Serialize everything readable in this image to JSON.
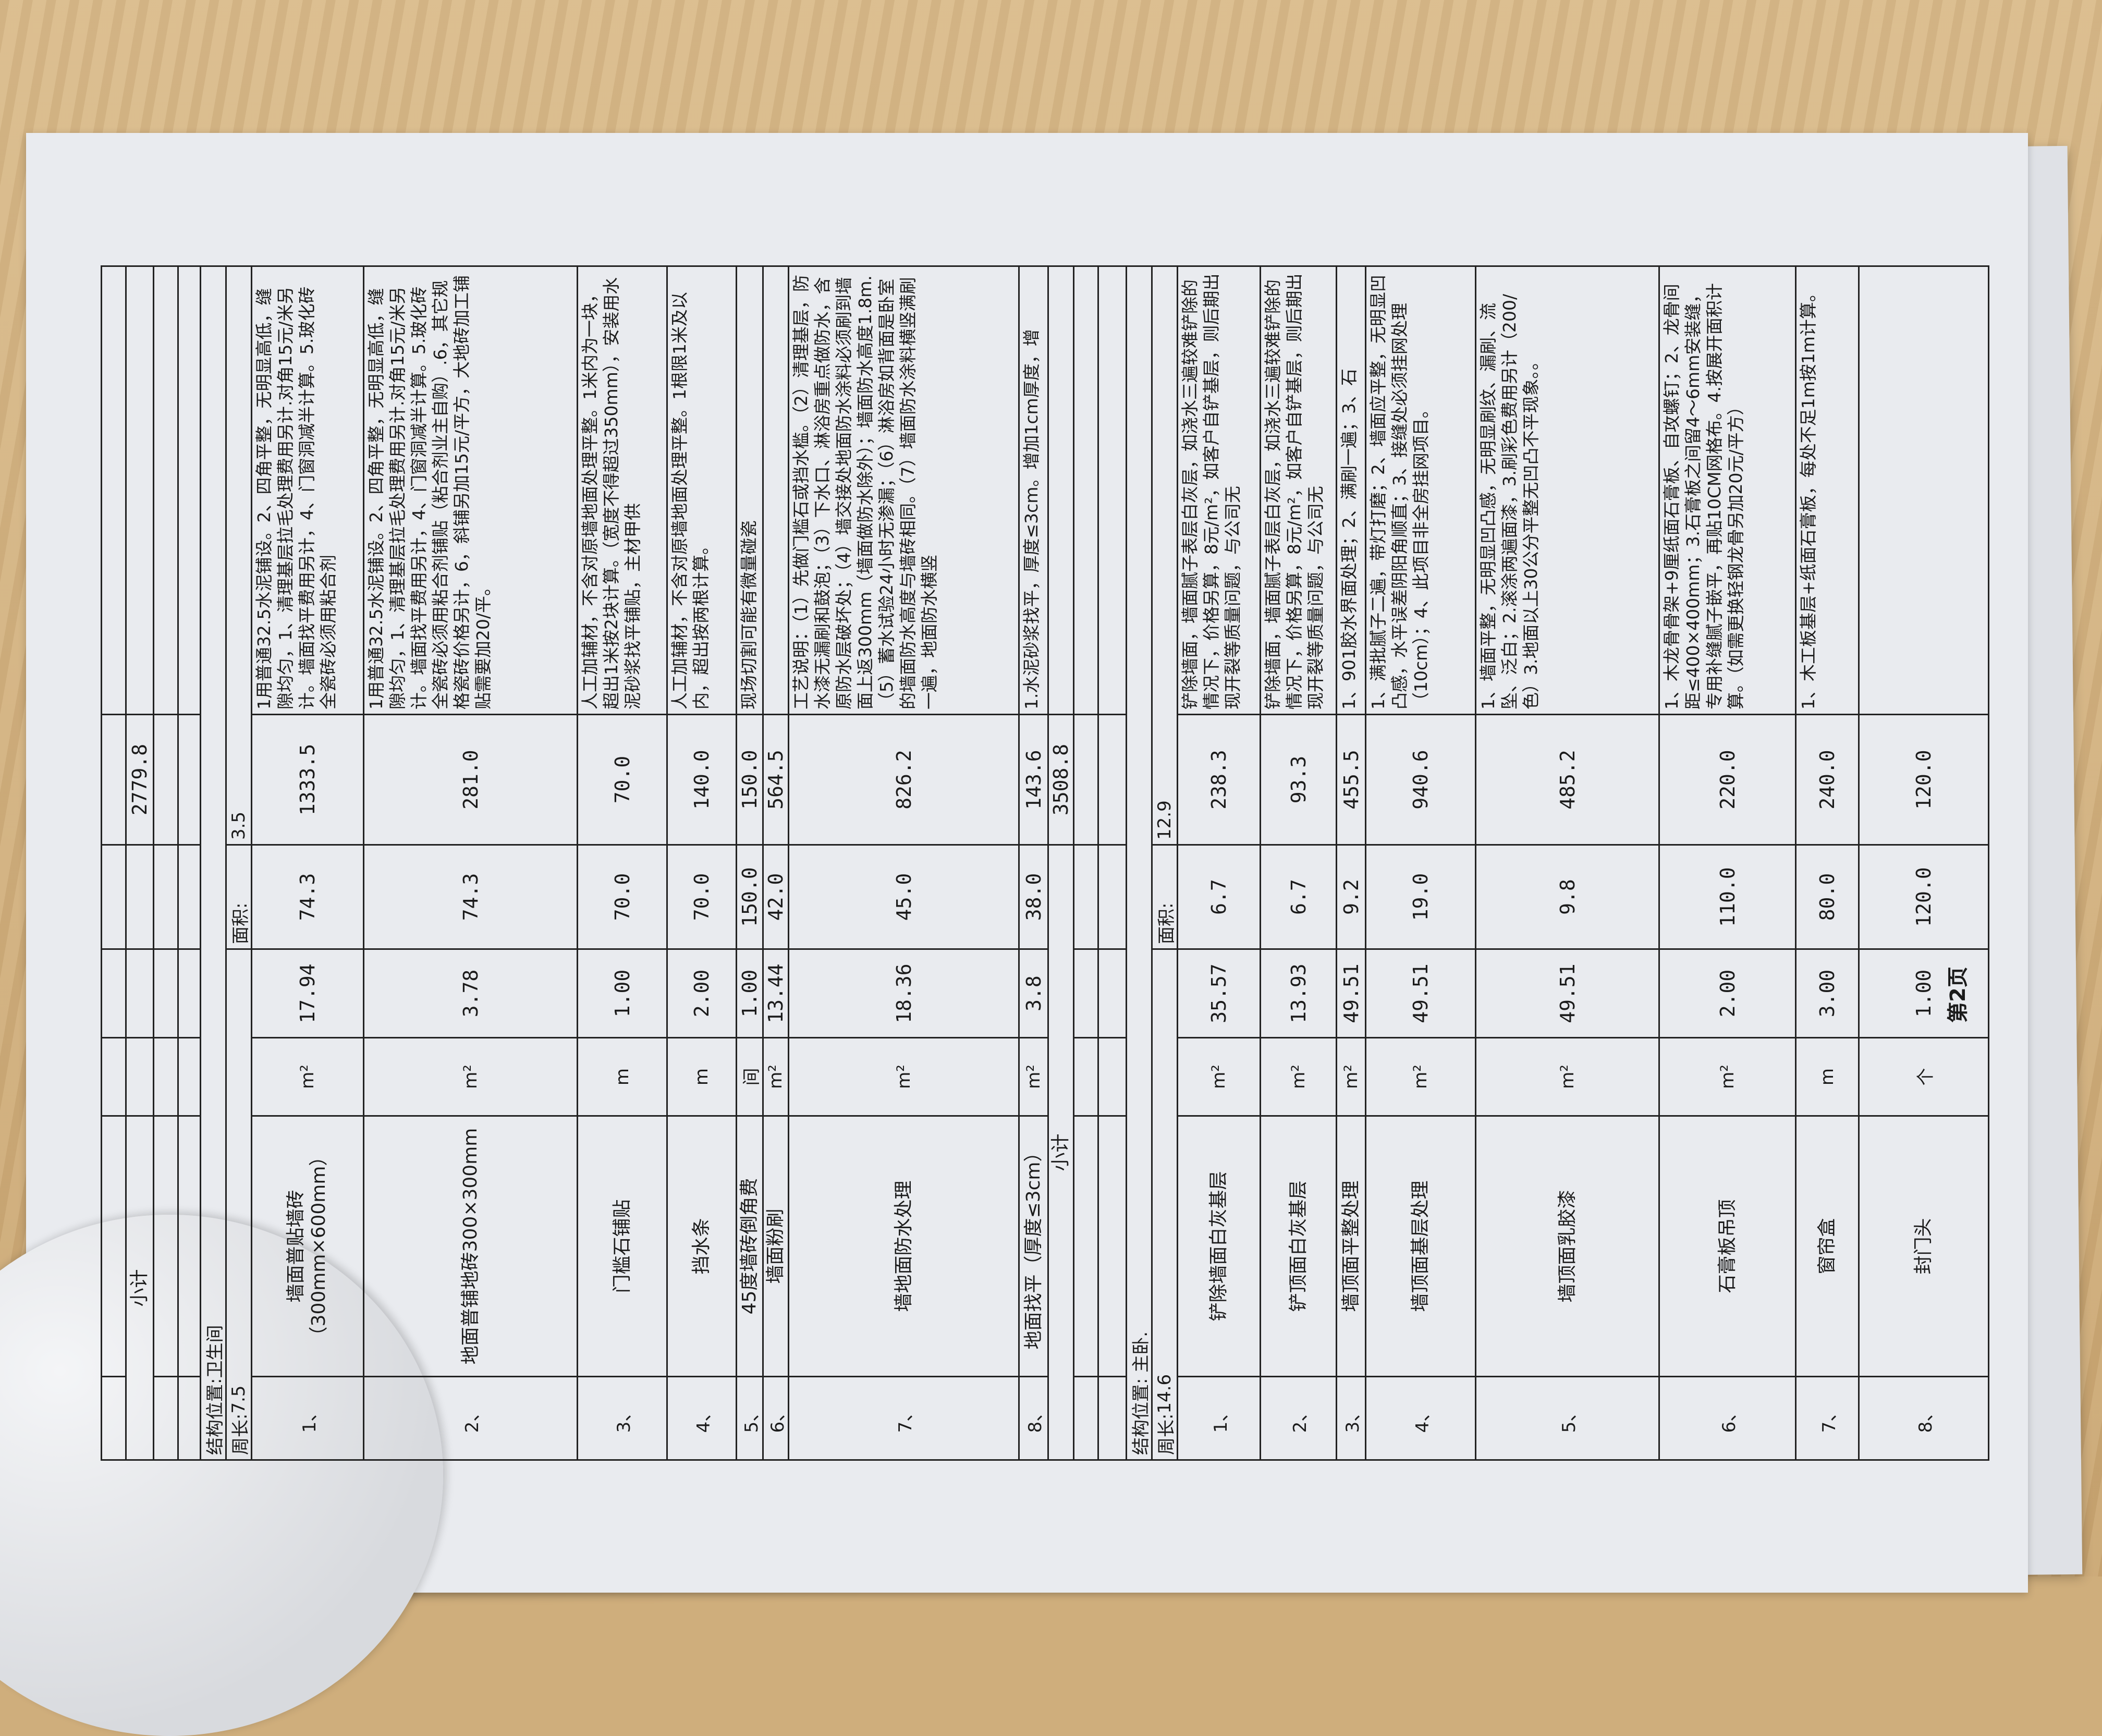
{
  "previous_subtotal": {
    "label": "小计",
    "total": "2779.8"
  },
  "sections": [
    {
      "location": "结构位置:卫生间",
      "perimeter_label": "周长:",
      "perimeter": "7.5",
      "area_label": "面积:",
      "area": "3.5",
      "rows": [
        {
          "no": "1、",
          "name": "墙面普贴墙砖（300mm×600mm）",
          "unit": "m²",
          "qty": "17.94",
          "price": "74.3",
          "total": "1333.5",
          "desc": "1用普通32.5水泥铺设。2、四角平整，无明显高低，缝隙均匀，1、清理基层拉毛处理费用另计.对角15元/米另计。墙面找平费用另计，4、门窗洞减半计算。5.玻化砖全瓷砖必须用粘合剂"
        },
        {
          "no": "2、",
          "name": "地面普铺地砖300×300mm",
          "unit": "m²",
          "qty": "3.78",
          "price": "74.3",
          "total": "281.0",
          "desc": "1用普通32.5水泥铺设。2、四角平整，无明显高低，缝隙均匀，1、清理基层拉毛处理费用另计.对角15元/米另计。墙面找平费用另计，4、门窗洞减半计算。5.玻化砖全瓷砖必须用粘合剂铺贴（粘合剂业主自购）.6，其它规格瓷砖价格另计，6，斜铺另加15元/平方，大地砖加工铺贴需要加20/平。"
        },
        {
          "no": "3、",
          "name": "门槛石铺贴",
          "unit": "m",
          "qty": "1.00",
          "price": "70.0",
          "total": "70.0",
          "desc": "人工加辅材，不含对原墙地面处理平整。1米内为一块，超出1米按2块计算。（宽度不得超过350mm），安装用水泥砂浆找平铺贴，主材甲供"
        },
        {
          "no": "4、",
          "name": "挡水条",
          "unit": "m",
          "qty": "2.00",
          "price": "70.0",
          "total": "140.0",
          "desc": "人工加辅材，不含对原墙地面处理平整。1根限1米及以内，超出按两根计算。"
        },
        {
          "no": "5、",
          "name": "45度墙砖倒角费",
          "unit": "间",
          "qty": "1.00",
          "price": "150.0",
          "total": "150.0",
          "desc": "现场切割可能有微量碰瓷"
        },
        {
          "no": "6、",
          "name": "墙面粉刷",
          "unit": "m²",
          "qty": "13.44",
          "price": "42.0",
          "total": "564.5",
          "desc": ""
        },
        {
          "no": "7、",
          "name": "墙地面防水处理",
          "unit": "m²",
          "qty": "18.36",
          "price": "45.0",
          "total": "826.2",
          "desc": "工艺说明：（1）先做门槛石或挡水槛。（2）清理基层，防水漆无漏刷和鼓泡；（3）下水口、淋浴房重点做防水，含原防水层破坏处；（4）墙交接处地面防水涂料必须刷到墙面上返300mm（墙面做防水除外）；墙面防水高度1.8m.（5）蓄水试验24小时无渗漏；（6）淋浴房如背面是卧室的墙面防水高度与墙砖相同。（7）墙面防水涂料横竖满刷一遍，地面防水横竖"
        },
        {
          "no": "8、",
          "name": "地面找平（厚度≤3cm）",
          "unit": "m²",
          "qty": "3.8",
          "price": "38.0",
          "total": "143.6",
          "desc": "1.水泥砂浆找平，厚度≤3cm。增加1cm厚度，增"
        }
      ],
      "subtotal": {
        "label": "小计",
        "total": "3508.8"
      }
    },
    {
      "location": "结构位置: 主卧.",
      "perimeter_label": "周长:",
      "perimeter": "14.6",
      "area_label": "面积:",
      "area": "12.9",
      "rows": [
        {
          "no": "1、",
          "name": "铲除墙面白灰基层",
          "unit": "m²",
          "qty": "35.57",
          "price": "6.7",
          "total": "238.3",
          "desc": "铲除墙面，墙面腻子表层白灰层，如浇水三遍较难铲除的情况下，价格另算，8元/m²，如客户自铲基层，则后期出现开裂等质量问题，与公司无"
        },
        {
          "no": "2、",
          "name": "铲顶面白灰基层",
          "unit": "m²",
          "qty": "13.93",
          "price": "6.7",
          "total": "93.3",
          "desc": "铲除墙面，墙面腻子表层白灰层，如浇水三遍较难铲除的情况下，价格另算，8元/m²，如客户自铲基层，则后期出现开裂等质量问题，与公司无"
        },
        {
          "no": "3、",
          "name": "墙顶面平整处理",
          "unit": "m²",
          "qty": "49.51",
          "price": "9.2",
          "total": "455.5",
          "desc": "1、901胶水界面处理；2、满刷一遍；3、石"
        },
        {
          "no": "4、",
          "name": "墙顶面基层处理",
          "unit": "m²",
          "qty": "49.51",
          "price": "19.0",
          "total": "940.6",
          "desc": "1、满批腻子二遍，带灯打磨；2、墙面应平整，无明显凹凸感，水平误差阴阳角顺直；3、接缝处必须挂网处理（10cm）；4、此项目非全房挂网项目。"
        },
        {
          "no": "5、",
          "name": "墙顶面乳胶漆",
          "unit": "m²",
          "qty": "49.51",
          "price": "9.8",
          "total": "485.2",
          "desc": "1、墙面平整，无明显凹凸感，无明显刷纹、漏刷、流坠、泛白；2.滚涂两遍面漆，3.刷彩色费用另计（200/色）3.地面以上30公分平整无凹凸不平现象。。"
        },
        {
          "no": "6、",
          "name": "石膏板吊顶",
          "unit": "m²",
          "qty": "2.00",
          "price": "110.0",
          "total": "220.0",
          "desc": "1、木龙骨骨架+9厘纸面石膏板、自攻螺钉；2、龙骨间距≤400×400mm；3.石膏板之间留4～6mm安装缝，专用补缝腻子嵌平，再贴10CM网格布。4.按展开面积计算。（如需更换轻钢龙骨另加20元/平方）"
        },
        {
          "no": "7、",
          "name": "窗帘盒",
          "unit": "m",
          "qty": "3.00",
          "price": "80.0",
          "total": "240.0",
          "desc": "1、木工板基层+纸面石膏板，每处不足1m按1m计算。"
        },
        {
          "no": "8、",
          "name": "封门头",
          "unit": "个",
          "qty": "1.00",
          "price": "120.0",
          "total": "120.0",
          "desc": ""
        }
      ]
    }
  ],
  "footer": {
    "page_label": "第2页"
  }
}
